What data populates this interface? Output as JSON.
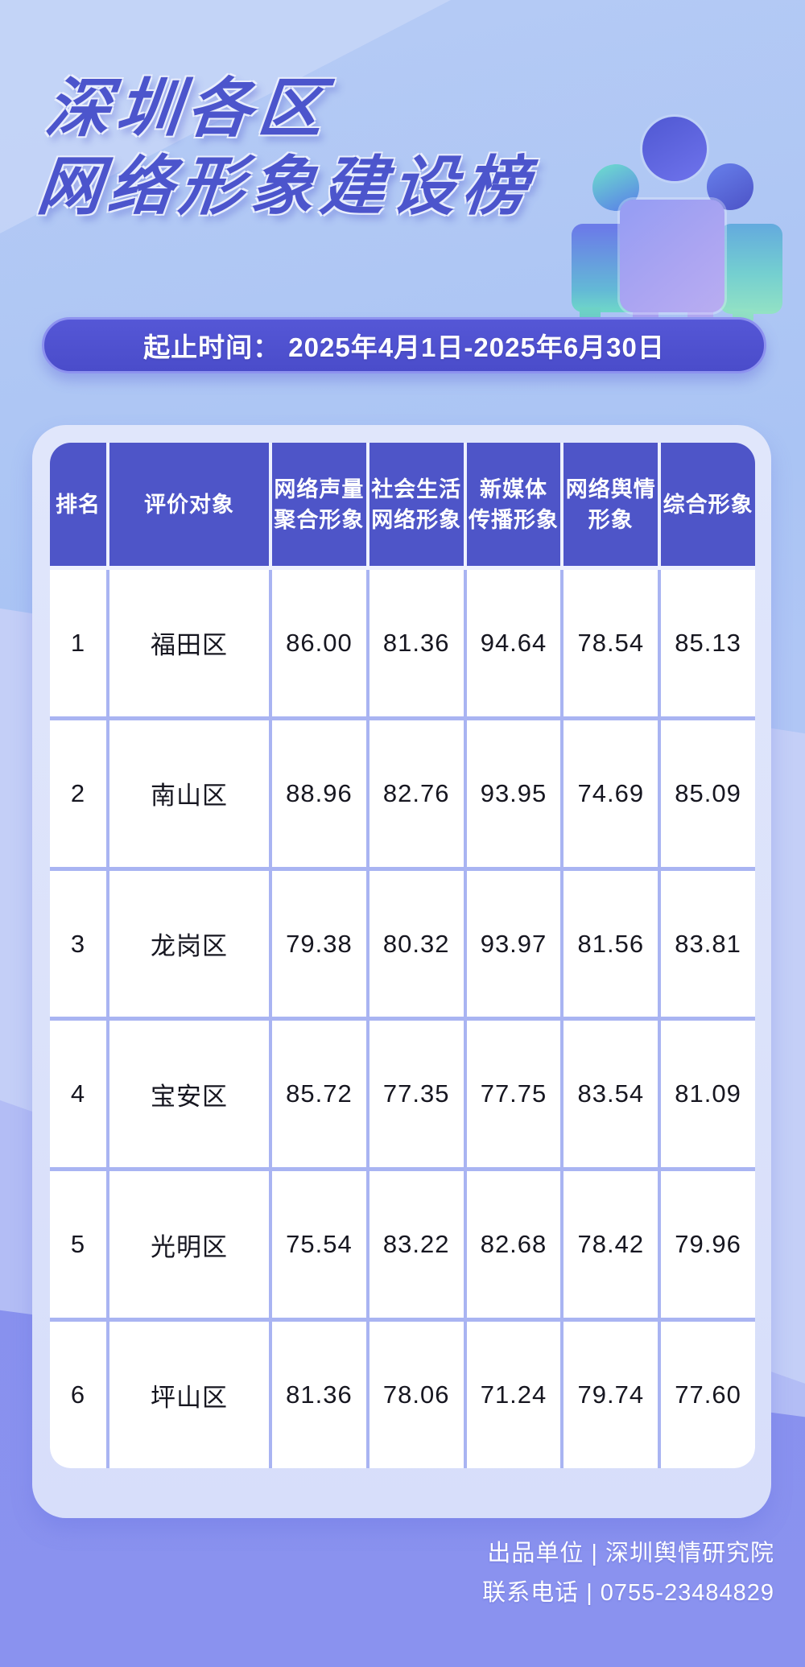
{
  "title": {
    "line1": "深圳各区",
    "line2": "网络形象建设榜"
  },
  "banner": {
    "text": "起止时间： 2025年4月1日-2025年6月30日"
  },
  "icons": {
    "people_group": "people-group"
  },
  "table": {
    "headers": [
      {
        "line1": "排名",
        "line2": ""
      },
      {
        "line1": "评价对象",
        "line2": ""
      },
      {
        "line1": "网络声量",
        "line2": "聚合形象"
      },
      {
        "line1": "社会生活",
        "line2": "网络形象"
      },
      {
        "line1": "新媒体",
        "line2": "传播形象"
      },
      {
        "line1": "网络舆情",
        "line2": "形象"
      },
      {
        "line1": "综合形象",
        "line2": ""
      }
    ],
    "rows": [
      {
        "rank": "1",
        "name": "福田区",
        "v1": "86.00",
        "v2": "81.36",
        "v3": "94.64",
        "v4": "78.54",
        "v5": "85.13"
      },
      {
        "rank": "2",
        "name": "南山区",
        "v1": "88.96",
        "v2": "82.76",
        "v3": "93.95",
        "v4": "74.69",
        "v5": "85.09"
      },
      {
        "rank": "3",
        "name": "龙岗区",
        "v1": "79.38",
        "v2": "80.32",
        "v3": "93.97",
        "v4": "81.56",
        "v5": "83.81"
      },
      {
        "rank": "4",
        "name": "宝安区",
        "v1": "85.72",
        "v2": "77.35",
        "v3": "77.75",
        "v4": "83.54",
        "v5": "81.09"
      },
      {
        "rank": "5",
        "name": "光明区",
        "v1": "75.54",
        "v2": "83.22",
        "v3": "82.68",
        "v4": "78.42",
        "v5": "79.96"
      },
      {
        "rank": "6",
        "name": "坪山区",
        "v1": "81.36",
        "v2": "78.06",
        "v3": "71.24",
        "v4": "79.74",
        "v5": "77.60"
      }
    ]
  },
  "footer": {
    "line1": "出品单位 | 深圳舆情研究院",
    "line2": "联系电话 | 0755-23484829"
  },
  "colors": {
    "accent_indigo": "#4e55c8",
    "background_top": "#aac4f4",
    "background_bottom": "#8a92ef",
    "table_grid_line": "#a9b4f2",
    "card": "#dce2fa",
    "teal_accent": "#6cd6cf"
  },
  "chart_data": {
    "type": "table",
    "title": "深圳各区网络形象建设榜",
    "period": "2025年4月1日-2025年6月30日",
    "columns": [
      "排名",
      "评价对象",
      "网络声量聚合形象",
      "社会生活网络形象",
      "新媒体传播形象",
      "网络舆情形象",
      "综合形象"
    ],
    "rows": [
      [
        1,
        "福田区",
        86.0,
        81.36,
        94.64,
        78.54,
        85.13
      ],
      [
        2,
        "南山区",
        88.96,
        82.76,
        93.95,
        74.69,
        85.09
      ],
      [
        3,
        "龙岗区",
        79.38,
        80.32,
        93.97,
        81.56,
        83.81
      ],
      [
        4,
        "宝安区",
        85.72,
        77.35,
        77.75,
        83.54,
        81.09
      ],
      [
        5,
        "光明区",
        75.54,
        83.22,
        82.68,
        78.42,
        79.96
      ],
      [
        6,
        "坪山区",
        81.36,
        78.06,
        71.24,
        79.74,
        77.6
      ]
    ],
    "source": "深圳舆情研究院",
    "contact": "0755-23484829"
  }
}
